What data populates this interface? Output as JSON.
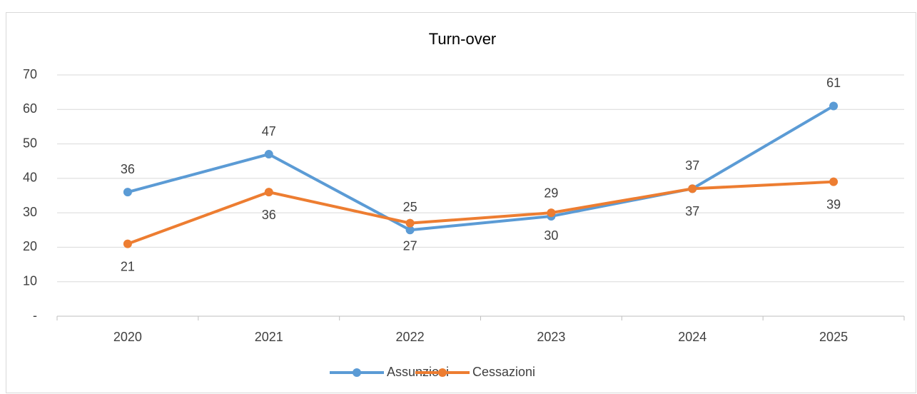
{
  "chart_data": {
    "type": "line",
    "title": "Turn-over",
    "categories": [
      "2020",
      "2021",
      "2022",
      "2023",
      "2024",
      "2025"
    ],
    "series": [
      {
        "name": "Assunzioni",
        "color": "#5b9bd5",
        "values": [
          36,
          47,
          25,
          29,
          37,
          61
        ]
      },
      {
        "name": "Cessazioni",
        "color": "#ed7d31",
        "values": [
          21,
          36,
          27,
          30,
          37,
          39
        ]
      }
    ],
    "ylim": [
      0,
      70
    ],
    "yticks": [
      {
        "value": 0,
        "label": "-"
      },
      10,
      20,
      30,
      40,
      50,
      60,
      70
    ],
    "grid": true,
    "legend": "bottom"
  }
}
